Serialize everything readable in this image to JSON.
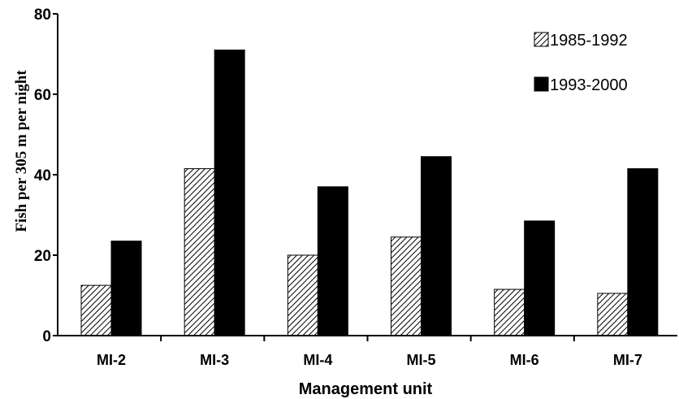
{
  "chart_data": {
    "type": "bar",
    "categories": [
      "MI-2",
      "MI-3",
      "MI-4",
      "MI-5",
      "MI-6",
      "MI-7"
    ],
    "series": [
      {
        "name": "1985-1992",
        "values": [
          12.5,
          41.5,
          20,
          24.5,
          11.5,
          10.5
        ],
        "fill": "hatch"
      },
      {
        "name": "1993-2000",
        "values": [
          23.5,
          71,
          37,
          44.5,
          28.5,
          41.5
        ],
        "color": "#000000"
      }
    ],
    "title": "",
    "xlabel": "Management unit",
    "ylabel": "Fish per 305 m per night",
    "ylim": [
      0,
      80
    ],
    "yticks": [
      "0",
      "20",
      "40",
      "60",
      "80"
    ],
    "grid": false,
    "legend_position": "top-right"
  }
}
